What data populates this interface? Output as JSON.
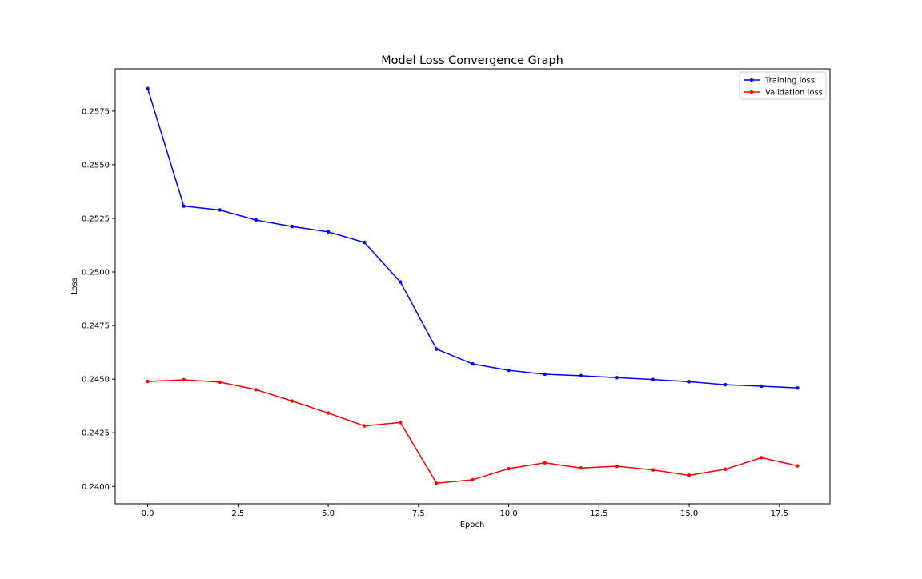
{
  "chart_data": {
    "type": "line",
    "title": "Model Loss Convergence Graph",
    "xlabel": "Epoch",
    "ylabel": "Loss",
    "xlim": [
      -0.9,
      18.9
    ],
    "ylim": [
      0.23919,
      0.25947
    ],
    "xticks": [
      0.0,
      2.5,
      5.0,
      7.5,
      10.0,
      12.5,
      15.0,
      17.5
    ],
    "xtick_labels": [
      "0.0",
      "2.5",
      "5.0",
      "7.5",
      "10.0",
      "12.5",
      "15.0",
      "17.5"
    ],
    "yticks": [
      0.24,
      0.2425,
      0.245,
      0.2475,
      0.25,
      0.2525,
      0.255,
      0.2575
    ],
    "ytick_labels": [
      "0.2400",
      "0.2425",
      "0.2450",
      "0.2475",
      "0.2500",
      "0.2525",
      "0.2550",
      "0.2575"
    ],
    "grid": false,
    "legend_position": "top-right",
    "x": [
      0,
      1,
      2,
      3,
      4,
      5,
      6,
      7,
      8,
      9,
      10,
      11,
      12,
      13,
      14,
      15,
      16,
      17,
      18
    ],
    "series": [
      {
        "name": "Training loss",
        "color": "#0000ff",
        "marker": "dot",
        "values": [
          0.25855,
          0.25307,
          0.25289,
          0.25242,
          0.25212,
          0.25187,
          0.25138,
          0.24953,
          0.2464,
          0.24571,
          0.24541,
          0.24523,
          0.24516,
          0.24507,
          0.24498,
          0.24488,
          0.24474,
          0.24467,
          0.24459
        ]
      },
      {
        "name": "Validation loss",
        "color": "#ff0000",
        "marker": "dot",
        "values": [
          0.24489,
          0.24497,
          0.24486,
          0.24451,
          0.24398,
          0.24342,
          0.24282,
          0.24298,
          0.24015,
          0.24031,
          0.24083,
          0.2411,
          0.24086,
          0.24094,
          0.24077,
          0.24052,
          0.2408,
          0.24134,
          0.24096
        ]
      }
    ]
  }
}
